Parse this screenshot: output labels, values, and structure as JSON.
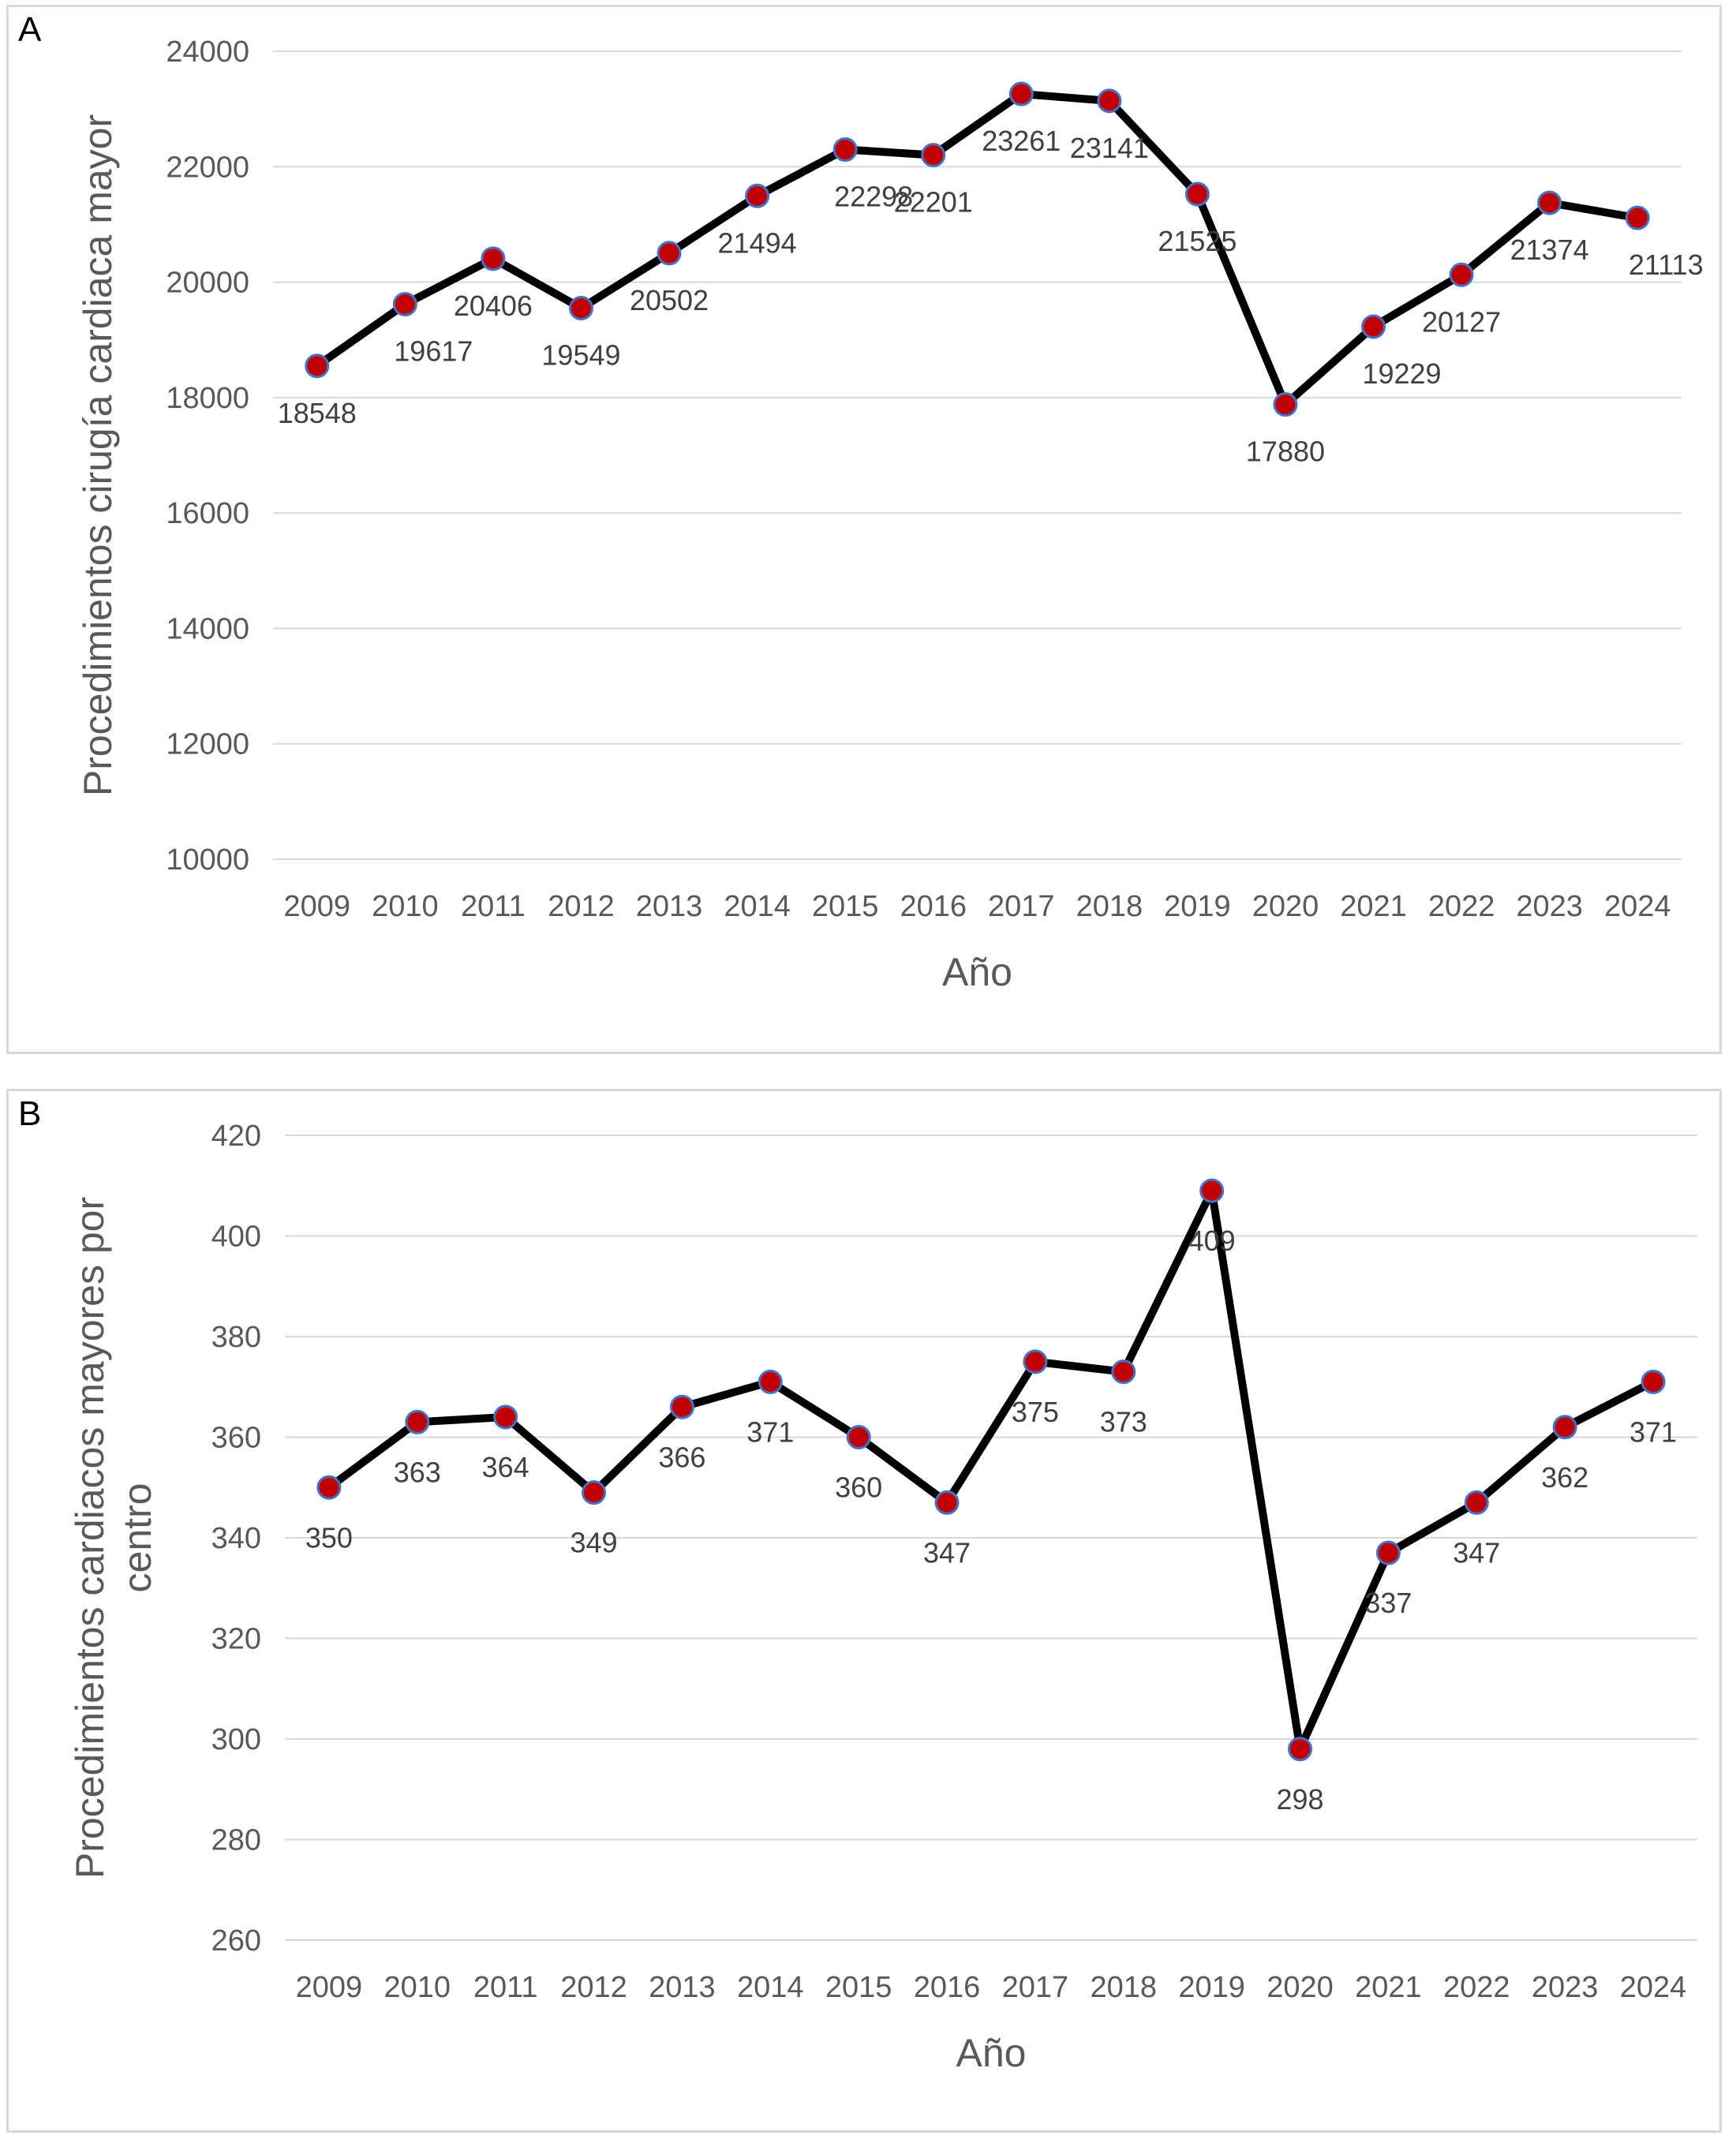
{
  "chart_data": [
    {
      "panel": "A",
      "type": "line",
      "categories": [
        "2009",
        "2010",
        "2011",
        "2012",
        "2013",
        "2014",
        "2015",
        "2016",
        "2017",
        "2018",
        "2019",
        "2020",
        "2021",
        "2022",
        "2023",
        "2024"
      ],
      "values": [
        18548,
        19617,
        20406,
        19549,
        20502,
        21494,
        22298,
        22201,
        23261,
        23141,
        21525,
        17880,
        19229,
        20127,
        21374,
        21113
      ],
      "xlabel": "Año",
      "ylabel": "Procedimientos cirugía cardiaca mayor",
      "ylim": [
        10000,
        24000
      ],
      "yticks": [
        10000,
        12000,
        14000,
        16000,
        18000,
        20000,
        22000,
        24000
      ],
      "grid": true,
      "line_color": "#000000",
      "marker_color": "#c00000",
      "marker_edge_color": "#4472c4"
    },
    {
      "panel": "B",
      "type": "line",
      "categories": [
        "2009",
        "2010",
        "2011",
        "2012",
        "2013",
        "2014",
        "2015",
        "2016",
        "2017",
        "2018",
        "2019",
        "2020",
        "2021",
        "2022",
        "2023",
        "2024"
      ],
      "values": [
        350,
        363,
        364,
        349,
        366,
        371,
        360,
        347,
        375,
        373,
        409,
        298,
        337,
        347,
        362,
        371
      ],
      "xlabel": "Año",
      "ylabel_lines": [
        "Procedimientos cardiacos mayores por",
        "centro"
      ],
      "ylim": [
        260,
        420
      ],
      "yticks": [
        260,
        280,
        300,
        320,
        340,
        360,
        380,
        400,
        420
      ],
      "grid": true,
      "line_color": "#000000",
      "marker_color": "#c00000",
      "marker_edge_color": "#4472c4"
    }
  ]
}
